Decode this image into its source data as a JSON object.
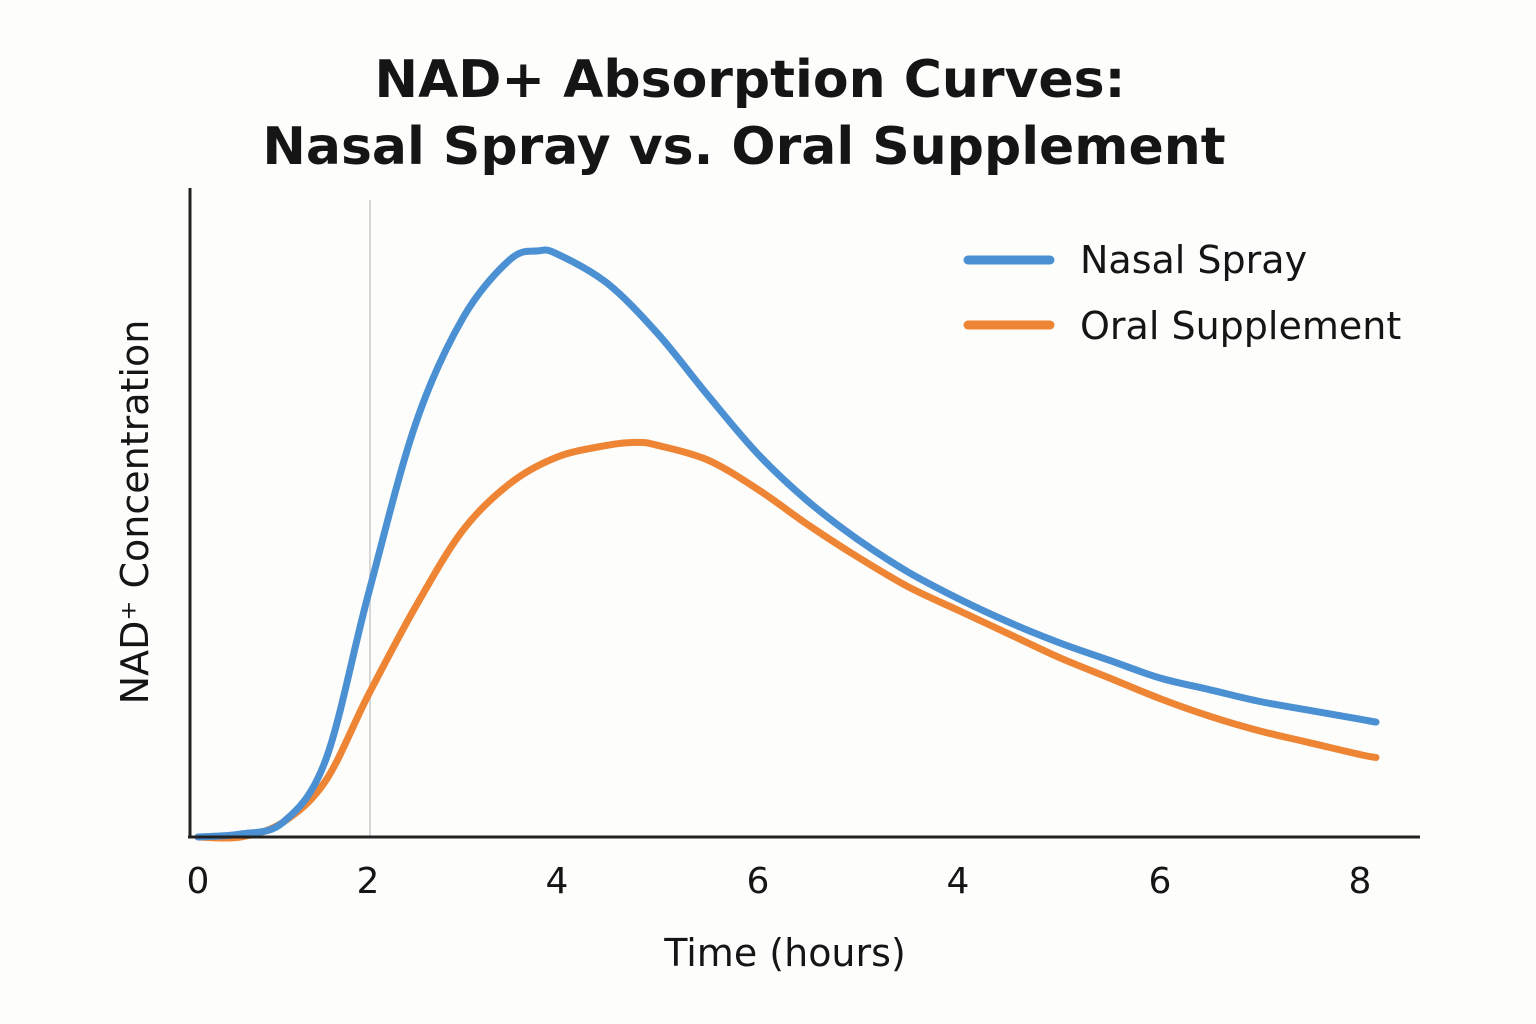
{
  "chart_data": {
    "type": "line",
    "title_line1": "NAD+ Absorption Curves:",
    "title_line2": "Nasal Spray vs. Oral Supplement",
    "xlabel": "Time (hours)",
    "ylabel": "NAD⁺ Concentration",
    "x_tick_labels": [
      "0",
      "2",
      "4",
      "6",
      "4",
      "6",
      "8"
    ],
    "x_positions": [
      0,
      1,
      2,
      3,
      4,
      5,
      6
    ],
    "y_ticks_shown": false,
    "ylim": [
      0,
      100
    ],
    "reference_line_at_tick": "2",
    "legend_position": "top-right",
    "colors": {
      "nasal": "#4a90d3",
      "oral": "#ee8535",
      "axis": "#222222",
      "reference": "#d6d6d6"
    },
    "series": [
      {
        "name": "Nasal Spray",
        "color": "#4a90d3",
        "points": [
          [
            0.0,
            0
          ],
          [
            0.25,
            0.5
          ],
          [
            0.5,
            2.5
          ],
          [
            0.75,
            13
          ],
          [
            1.0,
            41
          ],
          [
            1.25,
            70
          ],
          [
            1.5,
            88
          ],
          [
            1.75,
            98
          ],
          [
            1.9,
            99.5
          ],
          [
            2.0,
            99
          ],
          [
            2.25,
            94
          ],
          [
            2.5,
            85.5
          ],
          [
            2.75,
            75
          ],
          [
            3.0,
            65
          ],
          [
            3.25,
            57
          ],
          [
            3.5,
            50.5
          ],
          [
            3.75,
            45
          ],
          [
            4.0,
            40.5
          ],
          [
            4.25,
            36.5
          ],
          [
            4.5,
            33
          ],
          [
            4.75,
            30
          ],
          [
            5.0,
            27
          ],
          [
            5.25,
            25
          ],
          [
            5.5,
            23
          ],
          [
            5.75,
            21.5
          ],
          [
            6.0,
            20
          ],
          [
            6.08,
            19.5
          ]
        ]
      },
      {
        "name": "Oral Supplement",
        "color": "#ee8535",
        "points": [
          [
            0.0,
            0
          ],
          [
            0.25,
            0
          ],
          [
            0.5,
            2.5
          ],
          [
            0.75,
            9.5
          ],
          [
            1.0,
            24
          ],
          [
            1.25,
            39
          ],
          [
            1.5,
            52
          ],
          [
            1.75,
            60
          ],
          [
            2.0,
            64.5
          ],
          [
            2.25,
            66.5
          ],
          [
            2.4,
            67
          ],
          [
            2.5,
            66.5
          ],
          [
            2.75,
            64
          ],
          [
            3.0,
            59
          ],
          [
            3.25,
            53
          ],
          [
            3.5,
            47.5
          ],
          [
            3.75,
            42.5
          ],
          [
            4.0,
            38.5
          ],
          [
            4.25,
            34.5
          ],
          [
            4.5,
            30.5
          ],
          [
            4.75,
            27
          ],
          [
            5.0,
            23.5
          ],
          [
            5.25,
            20.5
          ],
          [
            5.5,
            18
          ],
          [
            5.75,
            16
          ],
          [
            6.0,
            14
          ],
          [
            6.08,
            13.5
          ]
        ]
      }
    ]
  }
}
